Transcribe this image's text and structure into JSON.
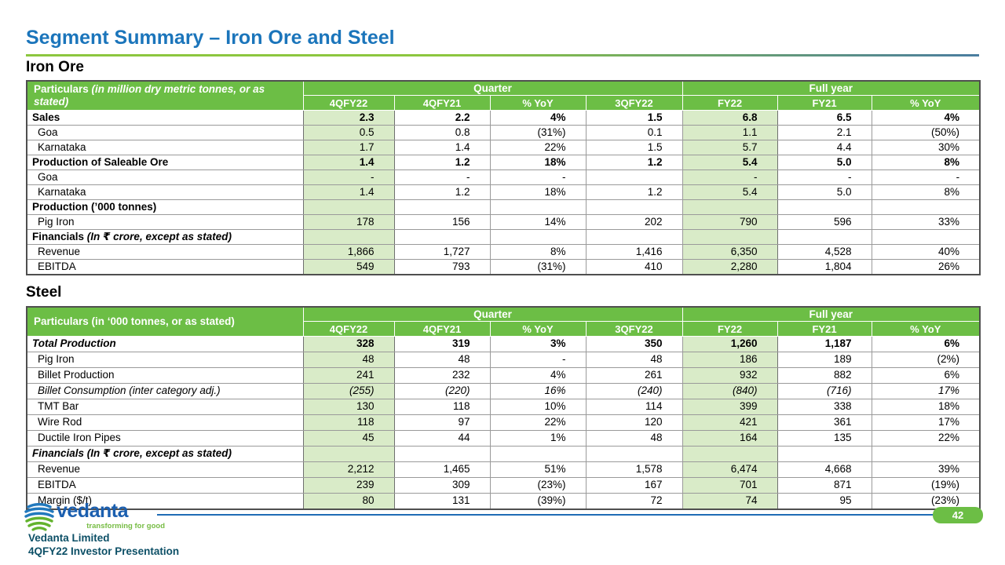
{
  "title": "Segment Summary – Iron Ore and Steel",
  "sections": {
    "iron_ore": {
      "heading": "Iron Ore",
      "header": {
        "label": "Particulars",
        "note": "(in million dry metric tonnes, or as stated)"
      },
      "groups": [
        {
          "label": "Quarter",
          "span": 4
        },
        {
          "label": "Full year",
          "span": 3
        }
      ],
      "columns": [
        "4QFY22",
        "4QFY21",
        "% YoY",
        "3QFY22",
        "FY22",
        "FY21",
        "% YoY"
      ],
      "rows": [
        {
          "label": "Sales",
          "note": "",
          "cls": "b",
          "indent": false,
          "values": [
            "2.3",
            "2.2",
            "4%",
            "1.5",
            "6.8",
            "6.5",
            "4%"
          ]
        },
        {
          "label": "Goa",
          "note": "",
          "cls": "",
          "indent": true,
          "values": [
            "0.5",
            "0.8",
            "(31%)",
            "0.1",
            "1.1",
            "2.1",
            "(50%)"
          ]
        },
        {
          "label": "Karnataka",
          "note": "",
          "cls": "",
          "indent": true,
          "values": [
            "1.7",
            "1.4",
            "22%",
            "1.5",
            "5.7",
            "4.4",
            "30%"
          ]
        },
        {
          "label": "Production of Saleable Ore",
          "note": "",
          "cls": "b",
          "indent": false,
          "values": [
            "1.4",
            "1.2",
            "18%",
            "1.2",
            "5.4",
            "5.0",
            "8%"
          ]
        },
        {
          "label": "Goa",
          "note": "",
          "cls": "",
          "indent": true,
          "values": [
            "-",
            "-",
            "-",
            "",
            "-",
            "-",
            "-"
          ]
        },
        {
          "label": "Karnataka",
          "note": "",
          "cls": "",
          "indent": true,
          "values": [
            "1.4",
            "1.2",
            "18%",
            "1.2",
            "5.4",
            "5.0",
            "8%"
          ]
        },
        {
          "label": "Production (’000 tonnes)",
          "note": "",
          "cls": "b",
          "indent": false,
          "values": [
            "",
            "",
            "",
            "",
            "",
            "",
            ""
          ]
        },
        {
          "label": "Pig Iron",
          "note": "",
          "cls": "",
          "indent": true,
          "values": [
            "178",
            "156",
            "14%",
            "202",
            "790",
            "596",
            "33%"
          ]
        },
        {
          "label": "Financials",
          "note": "(In ₹ crore, except as stated)",
          "cls": "b",
          "indent": false,
          "values": [
            "",
            "",
            "",
            "",
            "",
            "",
            ""
          ]
        },
        {
          "label": "Revenue",
          "note": "",
          "cls": "",
          "indent": true,
          "values": [
            "1,866",
            "1,727",
            "8%",
            "1,416",
            "6,350",
            "4,528",
            "40%"
          ]
        },
        {
          "label": "EBITDA",
          "note": "",
          "cls": "",
          "indent": true,
          "values": [
            "549",
            "793",
            "(31%)",
            "410",
            "2,280",
            "1,804",
            "26%"
          ]
        }
      ]
    },
    "steel": {
      "heading": "Steel",
      "header": {
        "label": "Particulars (in ‘000 tonnes, or as stated)",
        "note": ""
      },
      "groups": [
        {
          "label": "Quarter",
          "span": 4
        },
        {
          "label": "Full year",
          "span": 3
        }
      ],
      "columns": [
        "4QFY22",
        "4QFY21",
        "% YoY",
        "3QFY22",
        "FY22",
        "FY21",
        "% YoY"
      ],
      "rows": [
        {
          "label": "Total Production",
          "note": "",
          "cls": "bi",
          "indent": false,
          "values": [
            "328",
            "319",
            "3%",
            "350",
            "1,260",
            "1,187",
            "6%"
          ]
        },
        {
          "label": "Pig Iron",
          "note": "",
          "cls": "",
          "indent": true,
          "values": [
            "48",
            "48",
            "-",
            "48",
            "186",
            "189",
            "(2%)"
          ]
        },
        {
          "label": "Billet Production",
          "note": "",
          "cls": "",
          "indent": true,
          "values": [
            "241",
            "232",
            "4%",
            "261",
            "932",
            "882",
            "6%"
          ]
        },
        {
          "label": "Billet Consumption (inter category adj.)",
          "note": "",
          "cls": "i",
          "indent": true,
          "values": [
            "(255)",
            "(220)",
            "16%",
            "(240)",
            "(840)",
            "(716)",
            "17%"
          ]
        },
        {
          "label": "TMT Bar",
          "note": "",
          "cls": "",
          "indent": true,
          "values": [
            "130",
            "118",
            "10%",
            "114",
            "399",
            "338",
            "18%"
          ]
        },
        {
          "label": "Wire Rod",
          "note": "",
          "cls": "",
          "indent": true,
          "values": [
            "118",
            "97",
            "22%",
            "120",
            "421",
            "361",
            "17%"
          ]
        },
        {
          "label": "Ductile Iron Pipes",
          "note": "",
          "cls": "",
          "indent": true,
          "values": [
            "45",
            "44",
            "1%",
            "48",
            "164",
            "135",
            "22%"
          ]
        },
        {
          "label": "Financials",
          "note": "(In ₹ crore, except as stated)",
          "cls": "bi",
          "indent": false,
          "values": [
            "",
            "",
            "",
            "",
            "",
            "",
            ""
          ]
        },
        {
          "label": "Revenue",
          "note": "",
          "cls": "",
          "indent": true,
          "values": [
            "2,212",
            "1,465",
            "51%",
            "1,578",
            "6,474",
            "4,668",
            "39%"
          ]
        },
        {
          "label": "EBITDA",
          "note": "",
          "cls": "",
          "indent": true,
          "values": [
            "239",
            "309",
            "(23%)",
            "167",
            "701",
            "871",
            "(19%)"
          ]
        },
        {
          "label": "Margin ($/t)",
          "note": "",
          "cls": "",
          "indent": true,
          "values": [
            "80",
            "131",
            "(39%)",
            "72",
            "74",
            "95",
            "(23%)"
          ]
        }
      ]
    }
  },
  "footer": {
    "logo_text": "vedanta",
    "logo_tagline": "transforming for good",
    "company": "Vedanta Limited",
    "presentation": "4QFY22 Investor Presentation",
    "page_number": "42"
  },
  "colors": {
    "header_green": "#6CBE45",
    "highlight_green": "#D9EBC8",
    "title_blue": "#1B75BB",
    "footer_text_teal": "#0C4F66",
    "rule_blue": "#1F6CB5",
    "tagline_green": "#76BC43"
  }
}
